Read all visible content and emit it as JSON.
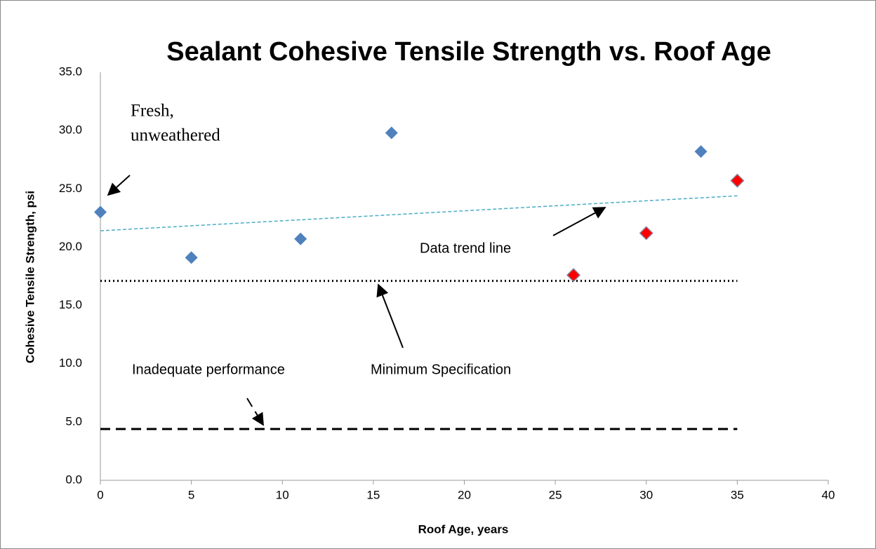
{
  "chart_data": {
    "type": "scatter",
    "title": "Sealant Cohesive Tensile Strength vs. Roof Age",
    "x_label": "Roof Age, years",
    "y_label": "Cohesive Tensile Strength, psi",
    "series": [
      {
        "color": "#4f81bd",
        "x": [
          0,
          5,
          11,
          16,
          33
        ],
        "values": [
          23.0,
          19.1,
          20.7,
          29.8,
          28.2
        ]
      },
      {
        "color": "#ff0000",
        "x": [
          26,
          30,
          35
        ],
        "values": [
          17.6,
          21.2,
          25.7
        ]
      }
    ],
    "trend": {
      "color": "#4bacc6",
      "x": [
        0,
        35
      ],
      "y": [
        21.4,
        24.4
      ]
    },
    "reference_lines": [
      {
        "y": 17.1,
        "x": [
          0,
          35
        ],
        "style": "dotted"
      },
      {
        "y": 4.4,
        "x": [
          0,
          35
        ],
        "style": "dashed"
      }
    ],
    "annotations": {
      "fresh": [
        "Fresh,",
        "unweathered"
      ],
      "trend": "Data trend line",
      "minimum": "Minimum Specification",
      "inadequate": "Inadequate performance"
    },
    "xlim": [
      0,
      40
    ],
    "xticks": [
      0,
      5,
      10,
      15,
      20,
      25,
      30,
      35,
      40
    ],
    "ylim": [
      0,
      35
    ],
    "yticks": [
      {
        "value": 0,
        "label": "0.0"
      },
      {
        "value": 5,
        "label": "5.0"
      },
      {
        "value": 10,
        "label": "10.0"
      },
      {
        "value": 15,
        "label": "15.0"
      },
      {
        "value": 20,
        "label": "20.0"
      },
      {
        "value": 25,
        "label": "25.0"
      },
      {
        "value": 30,
        "label": "30.0"
      },
      {
        "value": 35,
        "label": "35.0"
      }
    ],
    "grid": false
  }
}
